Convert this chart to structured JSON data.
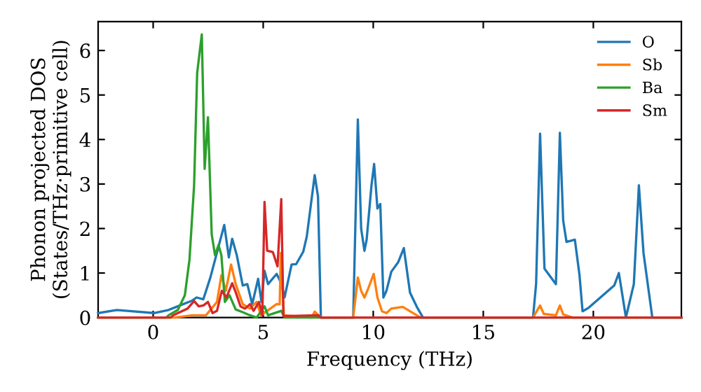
{
  "chart_data": {
    "type": "line",
    "xlabel": "Frequency (THz)",
    "ylabel": "Phonon projected DOS\n(States/THz·primitive cell)",
    "xlim": [
      -2.5,
      24
    ],
    "ylim": [
      0,
      6.65
    ],
    "xticks": [
      0,
      5,
      10,
      15,
      20
    ],
    "yticks": [
      0,
      1,
      2,
      3,
      4,
      5,
      6
    ],
    "grid": false,
    "legend": "top right",
    "series": [
      {
        "name": "O",
        "color": "#1f77b4",
        "x": [
          -2.5,
          -1.65,
          0.06,
          0.7,
          1.77,
          1.98,
          2.28,
          2.6,
          3.23,
          3.44,
          3.59,
          3.8,
          4.07,
          4.28,
          4.5,
          4.77,
          4.92,
          5.06,
          5.22,
          5.61,
          5.82,
          5.97,
          6.29,
          6.5,
          6.82,
          6.98,
          7.34,
          7.49,
          7.62,
          9.09,
          9.3,
          9.45,
          9.6,
          9.7,
          9.92,
          10.04,
          10.19,
          10.32,
          10.46,
          10.6,
          10.82,
          11.13,
          11.39,
          11.67,
          11.98,
          12.26,
          17.26,
          17.4,
          17.58,
          17.78,
          18.3,
          18.48,
          18.63,
          18.78,
          19.16,
          19.37,
          19.51,
          19.79,
          20.32,
          20.95,
          21.16,
          21.48,
          21.84,
          22.07,
          22.28,
          22.68,
          24
        ],
        "values": [
          0.1,
          0.17,
          0.1,
          0.17,
          0.38,
          0.45,
          0.41,
          0.9,
          2.08,
          1.35,
          1.77,
          1.4,
          0.72,
          0.75,
          0.3,
          0.87,
          0.35,
          1.05,
          0.75,
          0.98,
          0.77,
          0.45,
          1.19,
          1.2,
          1.48,
          1.82,
          3.2,
          2.72,
          0,
          0,
          4.45,
          2.0,
          1.5,
          1.75,
          2.97,
          3.45,
          2.45,
          2.55,
          0.45,
          0.6,
          1.03,
          1.24,
          1.56,
          0.56,
          0.24,
          0,
          0,
          0.76,
          4.13,
          1.1,
          0.75,
          4.15,
          2.18,
          1.7,
          1.75,
          0.96,
          0.14,
          0.22,
          0.45,
          0.72,
          1.0,
          0,
          0.75,
          2.97,
          1.45,
          0,
          0
        ]
      },
      {
        "name": "Sb",
        "color": "#ff7f0e",
        "x": [
          -2.5,
          1.0,
          1.77,
          2.4,
          2.9,
          3.1,
          3.3,
          3.54,
          3.75,
          4.07,
          4.4,
          4.7,
          4.9,
          5.6,
          5.75,
          5.8,
          5.94,
          7.2,
          7.34,
          7.62,
          9.09,
          9.3,
          9.45,
          9.6,
          9.77,
          10.02,
          10.19,
          10.4,
          10.6,
          10.82,
          11.34,
          11.67,
          12.15,
          17.26,
          17.58,
          17.75,
          18.3,
          18.48,
          18.63,
          19.05,
          24
        ],
        "values": [
          0,
          0,
          0.05,
          0.05,
          0.35,
          0.95,
          0.6,
          1.19,
          0.75,
          0.3,
          0.2,
          0.35,
          0.05,
          0.3,
          0.3,
          1.45,
          0.05,
          0,
          0.13,
          0,
          0,
          0.9,
          0.6,
          0.45,
          0.65,
          0.98,
          0.45,
          0.14,
          0.1,
          0.2,
          0.24,
          0.14,
          0,
          0,
          0.27,
          0.08,
          0.05,
          0.27,
          0.07,
          0,
          0
        ]
      },
      {
        "name": "Ba",
        "color": "#2ca02c",
        "x": [
          -2.5,
          0.6,
          0.7,
          1.12,
          1.44,
          1.65,
          1.86,
          2.0,
          2.21,
          2.34,
          2.49,
          2.66,
          2.81,
          2.97,
          3.1,
          3.26,
          3.47,
          3.75,
          4.07,
          4.4,
          4.7,
          5.06,
          5.22,
          5.82,
          5.97,
          24
        ],
        "values": [
          0,
          0,
          0.05,
          0.17,
          0.5,
          1.3,
          2.97,
          5.5,
          6.36,
          3.34,
          4.5,
          1.87,
          1.4,
          1.63,
          1.4,
          0.35,
          0.5,
          0.18,
          0.12,
          0.05,
          0,
          0.25,
          0.05,
          0.15,
          0,
          0
        ]
      },
      {
        "name": "Sm",
        "color": "#d62728",
        "x": [
          -2.5,
          0.8,
          0.9,
          1.56,
          1.86,
          2.07,
          2.28,
          2.49,
          2.7,
          2.9,
          3.12,
          3.33,
          3.59,
          3.75,
          3.97,
          4.18,
          4.4,
          4.56,
          4.81,
          4.96,
          5.06,
          5.18,
          5.44,
          5.65,
          5.82,
          5.92,
          7.5,
          7.6,
          24
        ],
        "values": [
          0,
          0,
          0.05,
          0.2,
          0.37,
          0.25,
          0.27,
          0.35,
          0.1,
          0.15,
          0.6,
          0.45,
          0.77,
          0.57,
          0.25,
          0.2,
          0.3,
          0.15,
          0.35,
          0.05,
          2.6,
          1.5,
          1.47,
          1.15,
          2.66,
          0.03,
          0.05,
          0,
          0
        ]
      }
    ]
  }
}
